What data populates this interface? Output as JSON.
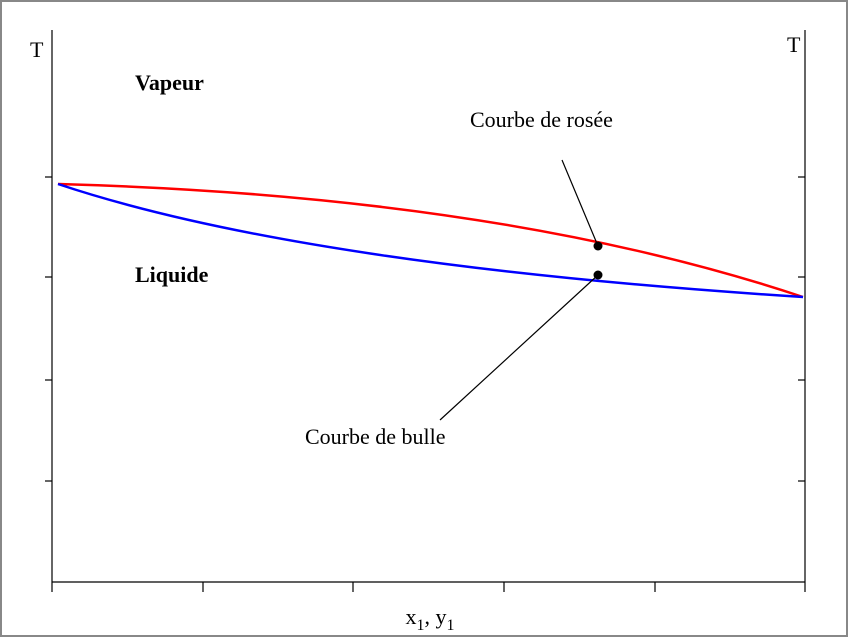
{
  "axis_left_label": "T",
  "axis_right_label": "T",
  "region_top": "Vapeur",
  "region_bottom": "Liquide",
  "dew_curve_label": "Courbe de rosée",
  "bubble_curve_label": "Courbe de bulle",
  "x_axis_label": {
    "x_main": "x",
    "x_sub": "1",
    "sep": ", ",
    "y_main": "y",
    "y_sub": "1"
  }
}
